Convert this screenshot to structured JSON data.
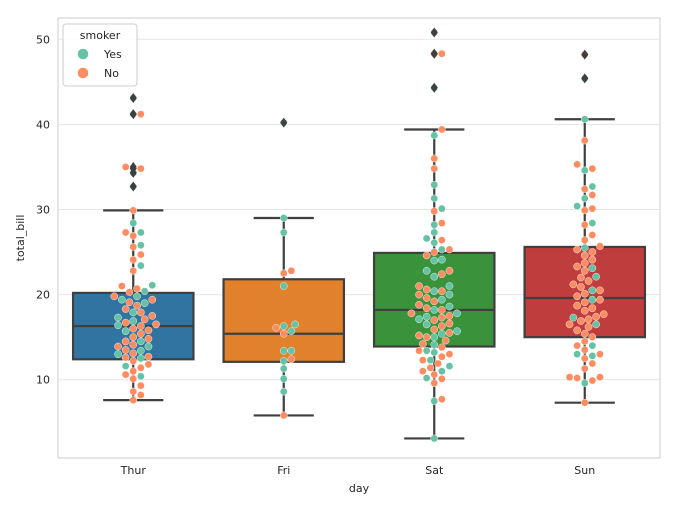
{
  "chart_data": {
    "type": "box-swarm",
    "xlabel": "day",
    "ylabel": "total_bill",
    "categories": [
      "Thur",
      "Fri",
      "Sat",
      "Sun"
    ],
    "ylim": [
      0.8,
      52.5
    ],
    "yticks": [
      10,
      20,
      30,
      40,
      50
    ],
    "grid": true,
    "legend": {
      "title": "smoker",
      "placement": "top-left",
      "entries": [
        {
          "label": "Yes",
          "color": "#66c2a5"
        },
        {
          "label": "No",
          "color": "#fc8d62"
        }
      ]
    },
    "box_colors": [
      "#3274a1",
      "#e1812c",
      "#3a923a",
      "#c03d3e"
    ],
    "boxes": [
      {
        "category": "Thur",
        "whislo": 7.6,
        "q1": 12.4,
        "median": 16.3,
        "q3": 20.2,
        "whishi": 29.9,
        "fliers": [
          32.7,
          34.3,
          34.8,
          35.0,
          41.2,
          43.1
        ]
      },
      {
        "category": "Fri",
        "whislo": 5.8,
        "q1": 12.1,
        "median": 15.4,
        "q3": 21.8,
        "whishi": 29.0,
        "fliers": [
          40.2
        ]
      },
      {
        "category": "Sat",
        "whislo": 3.1,
        "q1": 13.9,
        "median": 18.2,
        "q3": 24.9,
        "whishi": 39.4,
        "fliers": [
          44.3,
          48.3,
          48.3,
          50.8
        ]
      },
      {
        "category": "Sun",
        "whislo": 7.3,
        "q1": 15.0,
        "median": 19.6,
        "q3": 25.6,
        "whishi": 40.6,
        "fliers": [
          45.4,
          48.2
        ]
      }
    ],
    "swarm": {
      "Thur": {
        "Yes": [
          10.4,
          11.6,
          12.5,
          13.0,
          13.4,
          13.9,
          14.5,
          15.7,
          16.4,
          16.9,
          17.3,
          17.9,
          19.0,
          19.4,
          19.8,
          20.4,
          21.1,
          23.4,
          25.8,
          27.3,
          28.4,
          32.7,
          34.3,
          41.2,
          43.1
        ],
        "No": [
          7.6,
          8.2,
          8.6,
          9.3,
          10.1,
          10.6,
          11.0,
          11.4,
          11.8,
          12.2,
          12.6,
          12.7,
          13.1,
          13.5,
          13.9,
          14.1,
          14.5,
          14.8,
          15.0,
          15.4,
          15.8,
          16.0,
          16.3,
          16.5,
          16.7,
          17.1,
          17.5,
          17.9,
          18.3,
          18.7,
          19.1,
          19.4,
          19.8,
          20.3,
          20.7,
          21.0,
          22.8,
          24.1,
          24.7,
          25.6,
          26.9,
          27.3,
          29.9,
          34.8,
          35.0,
          41.2
        ]
      },
      "Fri": {
        "Yes": [
          8.6,
          10.1,
          11.3,
          12.2,
          13.4,
          13.4,
          15.7,
          16.3,
          16.5,
          21.0,
          27.3,
          29.0,
          40.2
        ],
        "No": [
          5.8,
          12.4,
          15.4,
          16.1,
          22.5,
          22.8
        ]
      },
      "Sat": {
        "Yes": [
          3.1,
          7.5,
          10.2,
          11.0,
          11.6,
          12.3,
          13.2,
          13.4,
          14.1,
          15.0,
          15.4,
          15.7,
          16.5,
          17.1,
          17.4,
          17.8,
          18.2,
          18.6,
          19.4,
          20.0,
          20.4,
          21.0,
          22.1,
          22.8,
          24.0,
          24.1,
          25.3,
          26.1,
          26.6,
          27.3,
          28.2,
          30.1,
          31.3,
          32.9,
          38.7,
          44.3,
          50.8
        ],
        "No": [
          7.7,
          9.6,
          10.1,
          10.6,
          11.0,
          11.4,
          11.9,
          12.3,
          12.7,
          13.0,
          13.4,
          13.8,
          14.2,
          14.6,
          15.0,
          15.2,
          15.5,
          15.9,
          16.3,
          16.6,
          17.0,
          17.3,
          17.5,
          17.8,
          18.2,
          18.4,
          18.8,
          19.2,
          19.6,
          20.0,
          20.4,
          20.6,
          21.0,
          22.4,
          22.8,
          24.6,
          25.0,
          25.3,
          26.4,
          28.4,
          29.8,
          34.8,
          36.0,
          39.4,
          48.3,
          48.3
        ]
      },
      "Sun": {
        "Yes": [
          9.6,
          12.8,
          13.0,
          14.0,
          16.5,
          17.3,
          19.4,
          20.5,
          22.1,
          23.1,
          25.5,
          28.4,
          30.4,
          31.3,
          32.7,
          34.6,
          40.6,
          45.4
        ],
        "No": [
          7.3,
          9.9,
          10.2,
          10.3,
          10.3,
          11.3,
          11.9,
          12.5,
          13.0,
          13.5,
          14.0,
          14.5,
          15.0,
          15.4,
          15.8,
          16.2,
          16.5,
          16.9,
          17.1,
          17.4,
          17.7,
          18.1,
          18.4,
          18.7,
          19.1,
          19.4,
          19.8,
          20.1,
          20.5,
          20.9,
          21.2,
          21.6,
          22.0,
          22.8,
          23.3,
          23.7,
          24.1,
          24.6,
          25.0,
          25.3,
          25.7,
          26.4,
          27.0,
          28.2,
          29.9,
          30.1,
          31.7,
          32.4,
          34.8,
          35.3,
          38.1,
          48.2
        ]
      }
    }
  }
}
